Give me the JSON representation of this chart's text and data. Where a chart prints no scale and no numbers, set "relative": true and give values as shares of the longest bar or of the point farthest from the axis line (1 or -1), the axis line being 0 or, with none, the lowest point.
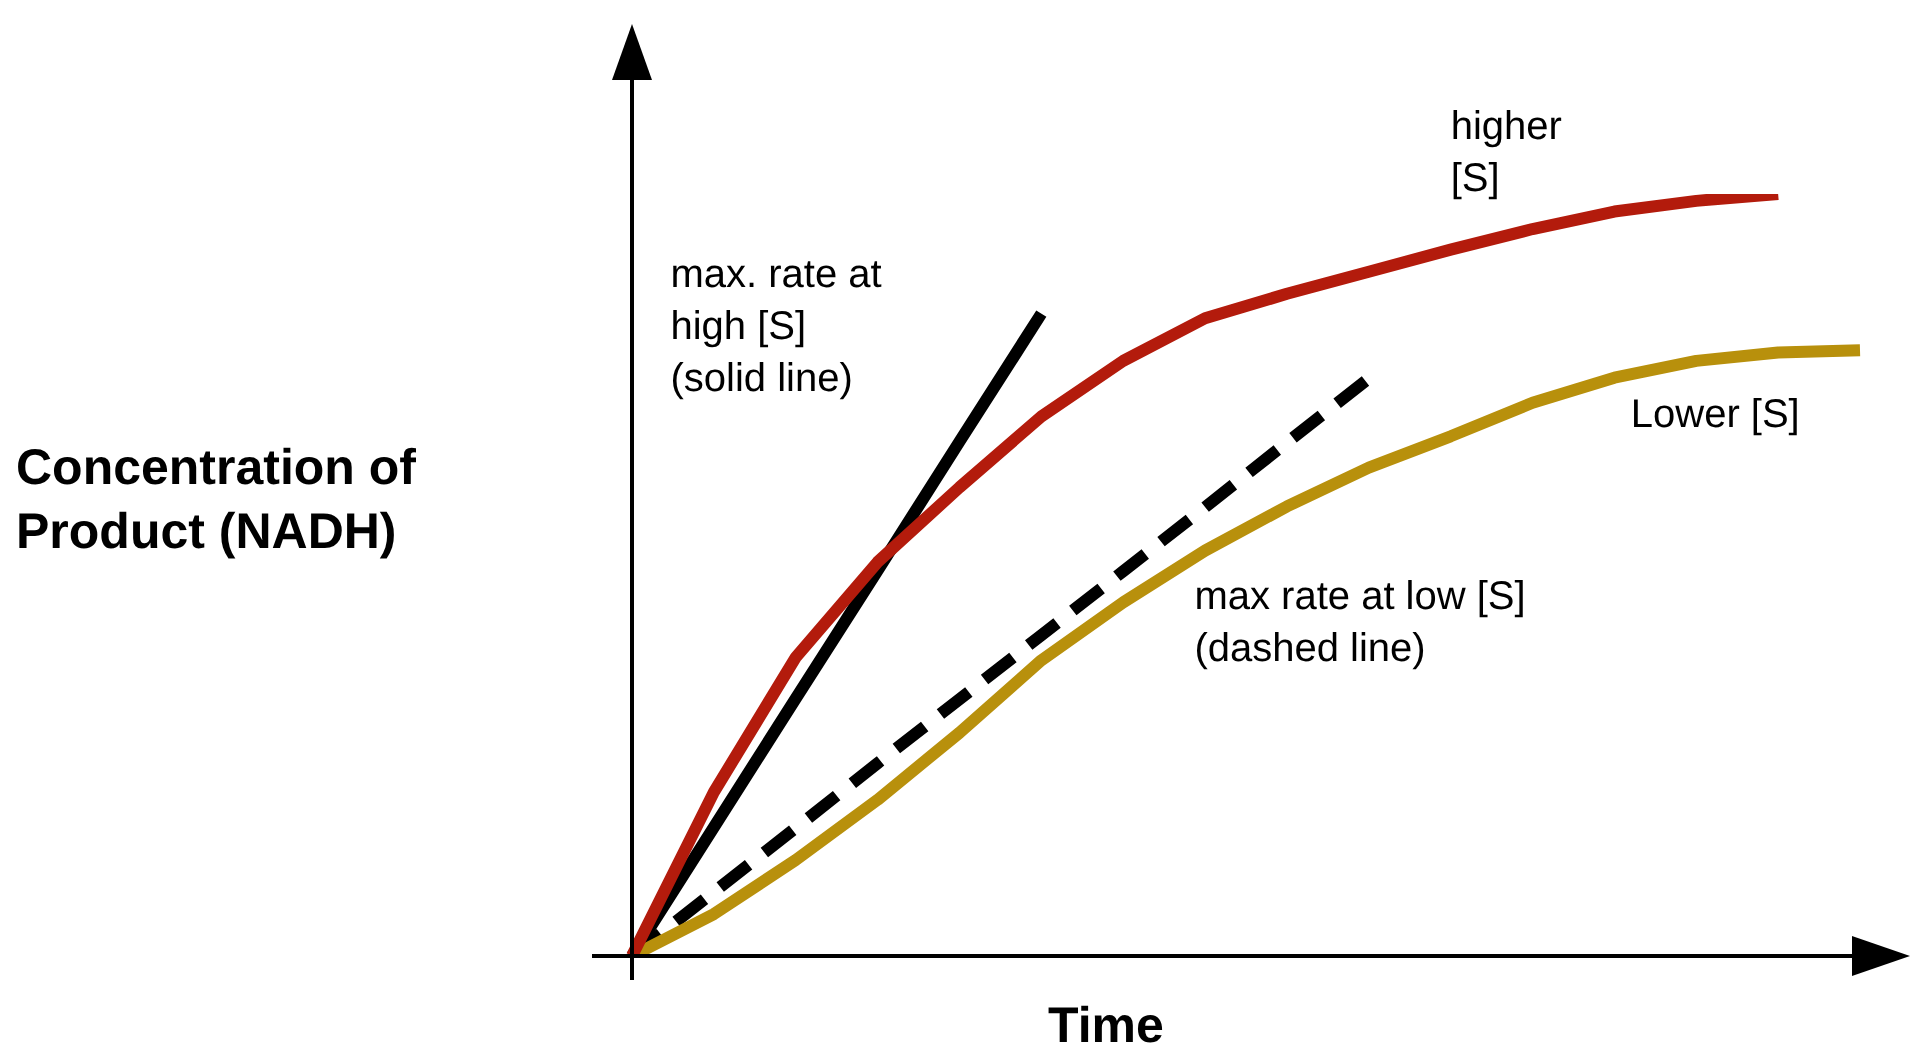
{
  "chart_data": {
    "type": "line",
    "relative": true,
    "xlabel": "Time",
    "ylabel": "Concentration of\nProduct (NADH)",
    "marker": "none",
    "categories": [
      null,
      null,
      null,
      null,
      null,
      null,
      null,
      null,
      null,
      null,
      null,
      null,
      null,
      null,
      null,
      null
    ],
    "series": [
      {
        "color": "#b31b0c",
        "line_style": "solid",
        "values": [
          0,
          0.215,
          0.392,
          0.517,
          0.615,
          0.708,
          0.781,
          0.837,
          0.869,
          0.898,
          0.927,
          0.954,
          0.977,
          0.991,
          1,
          null
        ]
      },
      {
        "color": "#b8900c",
        "line_style": "solid",
        "values": [
          0,
          0.055,
          0.126,
          0.205,
          0.293,
          0.388,
          0.464,
          0.532,
          0.59,
          0.641,
          0.682,
          0.726,
          0.759,
          0.781,
          0.792,
          0.795
        ]
      },
      {
        "color": "#000000",
        "line_style": "solid",
        "values": [
          0,
          0.169,
          0.338,
          0.506,
          0.675,
          0.843,
          null,
          null,
          null,
          null,
          null,
          null,
          null,
          null,
          null,
          null
        ]
      },
      {
        "color": "#000000",
        "line_style": "dashed",
        "values": [
          0,
          0.084,
          0.168,
          0.253,
          0.337,
          0.421,
          0.505,
          0.589,
          0.674,
          0.758,
          null,
          null,
          null,
          null,
          null,
          null
        ]
      }
    ],
    "annotations": [
      "higher\n[S]",
      "max. rate at\nhigh [S]\n(solid line)",
      "Lower [S]",
      "max rate at low [S]\n(dashed line)"
    ]
  }
}
